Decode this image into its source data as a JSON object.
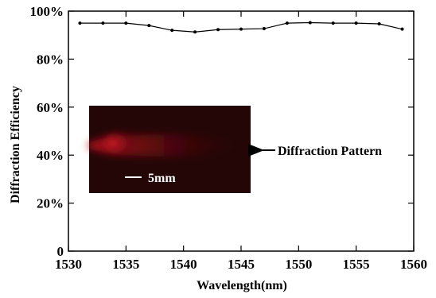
{
  "chart_data": {
    "type": "line",
    "xlabel": "Wavelength(nm)",
    "ylabel": "Diffraction Efficiency",
    "xlim": [
      1530,
      1560
    ],
    "ylim": [
      0,
      100
    ],
    "x_ticks": [
      1530,
      1535,
      1540,
      1545,
      1550,
      1555,
      1560
    ],
    "y_ticks": [
      0,
      20,
      40,
      60,
      80,
      100
    ],
    "x_tick_labels": [
      "1530",
      "1535",
      "1540",
      "1545",
      "1550",
      "1555",
      "1560"
    ],
    "y_tick_labels": [
      "0",
      "20%",
      "40%",
      "60%",
      "80%",
      "100%"
    ],
    "grid": false,
    "series": [
      {
        "x": [
          1531,
          1533,
          1535,
          1537,
          1539,
          1541,
          1543,
          1545,
          1547,
          1549,
          1551,
          1553,
          1555,
          1557,
          1559
        ],
        "values": [
          95,
          95,
          95,
          94,
          92,
          91.3,
          92.3,
          92.5,
          92.7,
          95,
          95.2,
          95,
          95,
          94.7,
          92.5
        ],
        "color": "#000000"
      }
    ],
    "annotations": {
      "inset_label": "Diffraction Pattern",
      "scale_bar_label": "5mm"
    }
  }
}
